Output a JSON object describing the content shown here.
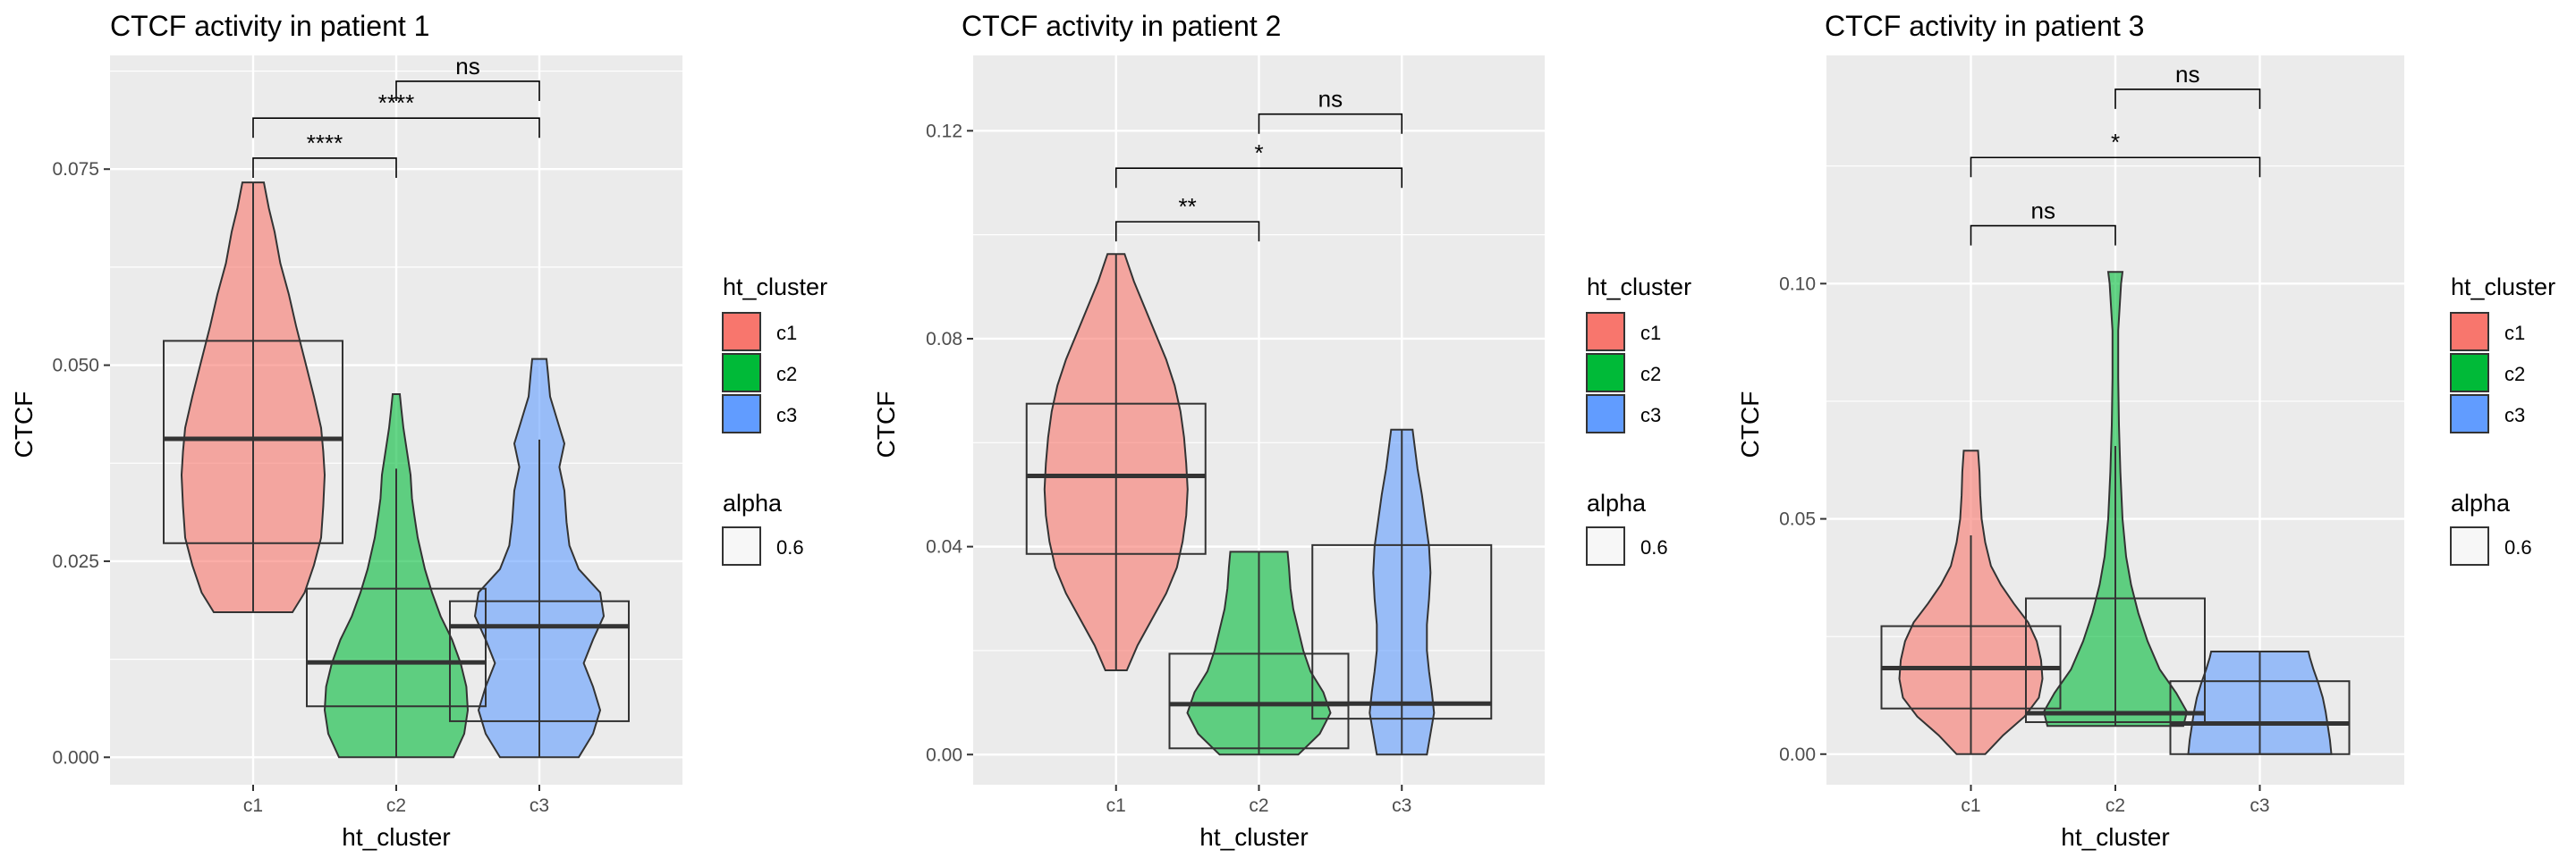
{
  "colors": {
    "panel_bg": "#ebebeb",
    "grid_major": "#ffffff",
    "c1": "#f8766d",
    "c2": "#00ba38",
    "c3": "#619cff",
    "outline": "#333333"
  },
  "legend": {
    "fill_title": "ht_cluster",
    "fill_items": [
      "c1",
      "c2",
      "c3"
    ],
    "alpha_title": "alpha",
    "alpha_value": "0.6"
  },
  "chart_data": [
    {
      "type": "violin+box",
      "title": "CTCF activity in patient 1",
      "xlabel": "ht_cluster",
      "ylabel": "CTCF",
      "categories": [
        "c1",
        "c2",
        "c3"
      ],
      "ylim": [
        -0.0035,
        0.0895
      ],
      "yticks": [
        0.0,
        0.025,
        0.05,
        0.075
      ],
      "ytick_labels": [
        "0.000",
        "0.025",
        "0.050",
        "0.075"
      ],
      "violins": [
        {
          "category": "c1",
          "min": 0.0185,
          "max": 0.0733,
          "profile": [
            [
              0.0185,
              0.55
            ],
            [
              0.021,
              0.72
            ],
            [
              0.0245,
              0.85
            ],
            [
              0.028,
              0.95
            ],
            [
              0.032,
              0.98
            ],
            [
              0.036,
              1.0
            ],
            [
              0.039,
              0.98
            ],
            [
              0.042,
              0.95
            ],
            [
              0.046,
              0.85
            ],
            [
              0.05,
              0.74
            ],
            [
              0.055,
              0.6
            ],
            [
              0.059,
              0.5
            ],
            [
              0.063,
              0.38
            ],
            [
              0.067,
              0.3
            ],
            [
              0.07,
              0.22
            ],
            [
              0.0733,
              0.15
            ]
          ]
        },
        {
          "category": "c2",
          "min": 0.0,
          "max": 0.0463,
          "profile": [
            [
              0.0,
              0.8
            ],
            [
              0.003,
              0.95
            ],
            [
              0.006,
              1.0
            ],
            [
              0.009,
              0.98
            ],
            [
              0.012,
              0.9
            ],
            [
              0.015,
              0.78
            ],
            [
              0.018,
              0.62
            ],
            [
              0.021,
              0.5
            ],
            [
              0.024,
              0.4
            ],
            [
              0.028,
              0.3
            ],
            [
              0.031,
              0.25
            ],
            [
              0.033,
              0.22
            ],
            [
              0.036,
              0.2
            ],
            [
              0.039,
              0.15
            ],
            [
              0.042,
              0.1
            ],
            [
              0.0445,
              0.07
            ],
            [
              0.0463,
              0.05
            ]
          ]
        },
        {
          "category": "c3",
          "min": 0.0,
          "max": 0.0508,
          "profile": [
            [
              0.0,
              0.55
            ],
            [
              0.003,
              0.75
            ],
            [
              0.006,
              0.85
            ],
            [
              0.009,
              0.75
            ],
            [
              0.012,
              0.62
            ],
            [
              0.015,
              0.75
            ],
            [
              0.018,
              0.9
            ],
            [
              0.021,
              0.85
            ],
            [
              0.024,
              0.55
            ],
            [
              0.027,
              0.42
            ],
            [
              0.03,
              0.38
            ],
            [
              0.034,
              0.35
            ],
            [
              0.037,
              0.28
            ],
            [
              0.04,
              0.35
            ],
            [
              0.043,
              0.25
            ],
            [
              0.046,
              0.15
            ],
            [
              0.049,
              0.12
            ],
            [
              0.0508,
              0.1
            ]
          ]
        }
      ],
      "boxes": [
        {
          "category": "c1",
          "whisker_low": 0.0185,
          "q1": 0.0273,
          "median": 0.0406,
          "q3": 0.0531,
          "whisker_high": 0.0733
        },
        {
          "category": "c2",
          "whisker_low": 0.0,
          "q1": 0.0065,
          "median": 0.0121,
          "q3": 0.0215,
          "whisker_high": 0.0368
        },
        {
          "category": "c3",
          "whisker_low": 0.0,
          "q1": 0.0046,
          "median": 0.0167,
          "q3": 0.0199,
          "whisker_high": 0.0405
        }
      ],
      "comparisons": [
        {
          "from": "c1",
          "to": "c2",
          "y": 0.0764,
          "label": "****"
        },
        {
          "from": "c1",
          "to": "c3",
          "y": 0.0815,
          "label": "****"
        },
        {
          "from": "c2",
          "to": "c3",
          "y": 0.0862,
          "label": "ns"
        }
      ]
    },
    {
      "type": "violin+box",
      "title": "CTCF activity in patient 2",
      "xlabel": "ht_cluster",
      "ylabel": "CTCF",
      "categories": [
        "c1",
        "c2",
        "c3"
      ],
      "ylim": [
        -0.0058,
        0.1345
      ],
      "yticks": [
        0.0,
        0.04,
        0.08,
        0.12
      ],
      "ytick_labels": [
        "0.00",
        "0.04",
        "0.08",
        "0.12"
      ],
      "violins": [
        {
          "category": "c1",
          "min": 0.0162,
          "max": 0.0963,
          "profile": [
            [
              0.0162,
              0.15
            ],
            [
              0.021,
              0.3
            ],
            [
              0.026,
              0.5
            ],
            [
              0.031,
              0.7
            ],
            [
              0.036,
              0.85
            ],
            [
              0.041,
              0.93
            ],
            [
              0.046,
              0.98
            ],
            [
              0.051,
              1.0
            ],
            [
              0.056,
              0.98
            ],
            [
              0.061,
              0.95
            ],
            [
              0.066,
              0.9
            ],
            [
              0.071,
              0.82
            ],
            [
              0.076,
              0.7
            ],
            [
              0.081,
              0.55
            ],
            [
              0.086,
              0.4
            ],
            [
              0.091,
              0.25
            ],
            [
              0.0963,
              0.12
            ]
          ]
        },
        {
          "category": "c2",
          "min": 0.0,
          "max": 0.039,
          "profile": [
            [
              0.0,
              0.55
            ],
            [
              0.004,
              0.85
            ],
            [
              0.008,
              1.0
            ],
            [
              0.012,
              0.9
            ],
            [
              0.016,
              0.72
            ],
            [
              0.02,
              0.62
            ],
            [
              0.024,
              0.55
            ],
            [
              0.028,
              0.48
            ],
            [
              0.032,
              0.44
            ],
            [
              0.036,
              0.42
            ],
            [
              0.039,
              0.4
            ]
          ]
        },
        {
          "category": "c3",
          "min": 0.0,
          "max": 0.0625,
          "profile": [
            [
              0.0,
              0.35
            ],
            [
              0.004,
              0.4
            ],
            [
              0.008,
              0.45
            ],
            [
              0.012,
              0.42
            ],
            [
              0.016,
              0.38
            ],
            [
              0.02,
              0.35
            ],
            [
              0.025,
              0.35
            ],
            [
              0.03,
              0.38
            ],
            [
              0.035,
              0.4
            ],
            [
              0.04,
              0.38
            ],
            [
              0.045,
              0.33
            ],
            [
              0.05,
              0.28
            ],
            [
              0.055,
              0.22
            ],
            [
              0.0625,
              0.15
            ]
          ]
        }
      ],
      "boxes": [
        {
          "category": "c1",
          "whisker_low": 0.0162,
          "q1": 0.0386,
          "median": 0.0536,
          "q3": 0.0675,
          "whisker_high": 0.0963
        },
        {
          "category": "c2",
          "whisker_low": 0.0,
          "q1": 0.0012,
          "median": 0.0097,
          "q3": 0.0194,
          "whisker_high": 0.039
        },
        {
          "category": "c3",
          "whisker_low": 0.0,
          "q1": 0.0069,
          "median": 0.0098,
          "q3": 0.0403,
          "whisker_high": 0.0625
        }
      ],
      "comparisons": [
        {
          "from": "c1",
          "to": "c2",
          "y": 0.1025,
          "label": "**"
        },
        {
          "from": "c1",
          "to": "c3",
          "y": 0.1128,
          "label": "*"
        },
        {
          "from": "c2",
          "to": "c3",
          "y": 0.1232,
          "label": "ns"
        }
      ]
    },
    {
      "type": "violin+box",
      "title": "CTCF activity in patient 3",
      "xlabel": "ht_cluster",
      "ylabel": "CTCF",
      "categories": [
        "c1",
        "c2",
        "c3"
      ],
      "ylim": [
        -0.0065,
        0.1485
      ],
      "yticks": [
        0.0,
        0.05,
        0.1
      ],
      "ytick_labels": [
        "0.00",
        "0.05",
        "0.10"
      ],
      "violins": [
        {
          "category": "c1",
          "min": 0.0,
          "max": 0.0645,
          "profile": [
            [
              0.0,
              0.2
            ],
            [
              0.004,
              0.45
            ],
            [
              0.008,
              0.75
            ],
            [
              0.012,
              0.95
            ],
            [
              0.016,
              1.0
            ],
            [
              0.02,
              0.98
            ],
            [
              0.024,
              0.92
            ],
            [
              0.028,
              0.8
            ],
            [
              0.032,
              0.6
            ],
            [
              0.036,
              0.42
            ],
            [
              0.04,
              0.28
            ],
            [
              0.045,
              0.2
            ],
            [
              0.05,
              0.15
            ],
            [
              0.055,
              0.13
            ],
            [
              0.06,
              0.12
            ],
            [
              0.0645,
              0.1
            ]
          ]
        },
        {
          "category": "c2",
          "min": 0.006,
          "max": 0.1025,
          "profile": [
            [
              0.006,
              0.95
            ],
            [
              0.009,
              1.0
            ],
            [
              0.013,
              0.85
            ],
            [
              0.018,
              0.62
            ],
            [
              0.024,
              0.45
            ],
            [
              0.03,
              0.32
            ],
            [
              0.036,
              0.22
            ],
            [
              0.042,
              0.15
            ],
            [
              0.05,
              0.1
            ],
            [
              0.06,
              0.07
            ],
            [
              0.07,
              0.05
            ],
            [
              0.08,
              0.04
            ],
            [
              0.09,
              0.04
            ],
            [
              0.095,
              0.06
            ],
            [
              0.1,
              0.08
            ],
            [
              0.1025,
              0.1
            ]
          ]
        },
        {
          "category": "c3",
          "min": 0.0,
          "max": 0.0218,
          "profile": [
            [
              0.0,
              1.0
            ],
            [
              0.003,
              0.98
            ],
            [
              0.006,
              0.95
            ],
            [
              0.009,
              0.92
            ],
            [
              0.012,
              0.88
            ],
            [
              0.015,
              0.82
            ],
            [
              0.018,
              0.75
            ],
            [
              0.0205,
              0.7
            ],
            [
              0.0218,
              0.68
            ]
          ]
        }
      ],
      "boxes": [
        {
          "category": "c1",
          "whisker_low": 0.0,
          "q1": 0.0097,
          "median": 0.0183,
          "q3": 0.0272,
          "whisker_high": 0.0465
        },
        {
          "category": "c2",
          "whisker_low": 0.006,
          "q1": 0.0068,
          "median": 0.0087,
          "q3": 0.0331,
          "whisker_high": 0.0655
        },
        {
          "category": "c3",
          "whisker_low": 0.0,
          "q1": 0.0,
          "median": 0.0065,
          "q3": 0.0155,
          "whisker_high": 0.0218
        }
      ],
      "comparisons": [
        {
          "from": "c1",
          "to": "c2",
          "y": 0.1123,
          "label": "ns"
        },
        {
          "from": "c1",
          "to": "c3",
          "y": 0.1268,
          "label": "*"
        },
        {
          "from": "c2",
          "to": "c3",
          "y": 0.1413,
          "label": "ns"
        }
      ]
    }
  ]
}
